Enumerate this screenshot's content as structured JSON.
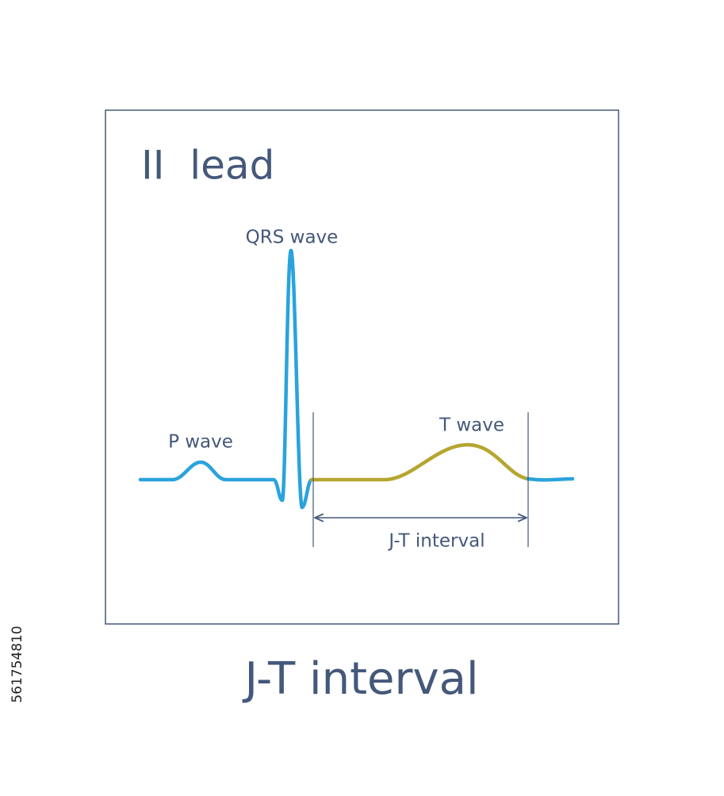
{
  "diagram": {
    "lead_label": "II  lead",
    "labels": {
      "qrs": "QRS wave",
      "p": "P wave",
      "t": "T wave",
      "interval": "J-T interval"
    },
    "title": "J-T interval",
    "stock_id": "561754810"
  }
}
